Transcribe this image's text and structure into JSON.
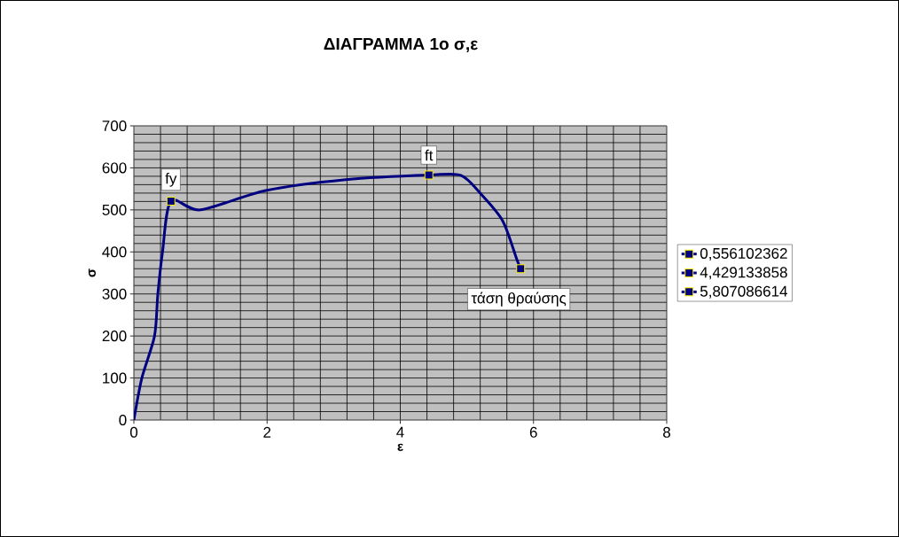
{
  "chart_data": {
    "type": "line",
    "title": "ΔΙΑΓΡΑΜΜΑ 1ο σ,ε",
    "xlabel": "ε",
    "ylabel": "σ",
    "xlim": [
      0,
      8
    ],
    "xticks": [
      0,
      2,
      4,
      6,
      8
    ],
    "ylim": [
      0,
      700
    ],
    "yticks": [
      0,
      100,
      200,
      300,
      400,
      500,
      600,
      700
    ],
    "grid": true,
    "legend": "right",
    "series": [
      {
        "color": "#000080",
        "marker": "none",
        "x": [
          0,
          0.12,
          0.31,
          0.36,
          0.43,
          0.556,
          1.0,
          1.98,
          3.18,
          4.429,
          4.91,
          5.22,
          5.54,
          5.75,
          5.807
        ],
        "values": [
          0,
          100,
          200,
          300,
          400,
          521,
          500,
          546,
          572,
          583,
          582,
          536,
          473,
          382,
          360
        ]
      },
      {
        "name": "0,556102362",
        "color": "#000080",
        "marker": "square",
        "x": [
          0.556
        ],
        "values": [
          521
        ]
      },
      {
        "name": "4,429133858",
        "color": "#000080",
        "marker": "square",
        "x": [
          4.429
        ],
        "values": [
          583
        ]
      },
      {
        "name": "5,807086614",
        "color": "#000080",
        "marker": "square",
        "x": [
          5.807
        ],
        "values": [
          360
        ]
      }
    ],
    "annotations": [
      {
        "text": "fy",
        "x": 0.556,
        "y": 521
      },
      {
        "text": "ft",
        "x": 4.429,
        "y": 583
      },
      {
        "text": "τάση θραύσης",
        "x": 5.807,
        "y": 360
      }
    ]
  }
}
